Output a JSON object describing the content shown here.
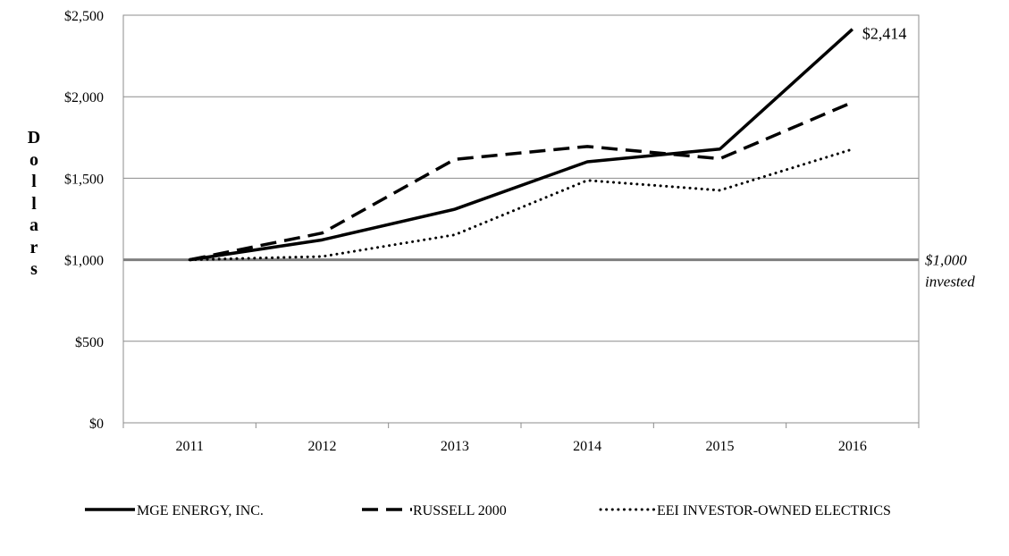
{
  "chart_data": {
    "type": "line",
    "x": [
      "2011",
      "2012",
      "2013",
      "2014",
      "2015",
      "2016"
    ],
    "series": [
      {
        "name": "MGE ENERGY, INC.",
        "style": "solid",
        "values": [
          1000,
          1122,
          1310,
          1601,
          1679,
          2414
        ]
      },
      {
        "name": "RUSSELL 2000",
        "style": "dashed",
        "values": [
          1000,
          1164,
          1616,
          1695,
          1620,
          1966
        ]
      },
      {
        "name": "EEI  INVESTOR-OWNED ELECTRICS",
        "style": "dotted",
        "values": [
          1000,
          1020,
          1153,
          1487,
          1426,
          1678
        ]
      }
    ],
    "ylim": [
      0,
      2500
    ],
    "yticks": [
      0,
      500,
      1000,
      1500,
      2000,
      2500
    ],
    "ytick_labels": [
      "$0",
      "$500",
      "$1,000",
      "$1,500",
      "$2,000",
      "$2,500"
    ],
    "ylabel": "Dollars",
    "xlabel": "",
    "title": "",
    "grid": "horizontal",
    "legend_position": "bottom",
    "reference_line": {
      "value": 1000,
      "label_line1": "$1,000",
      "label_line2": "invested"
    },
    "end_annotation": {
      "series": 0,
      "text": "$2,414"
    }
  }
}
